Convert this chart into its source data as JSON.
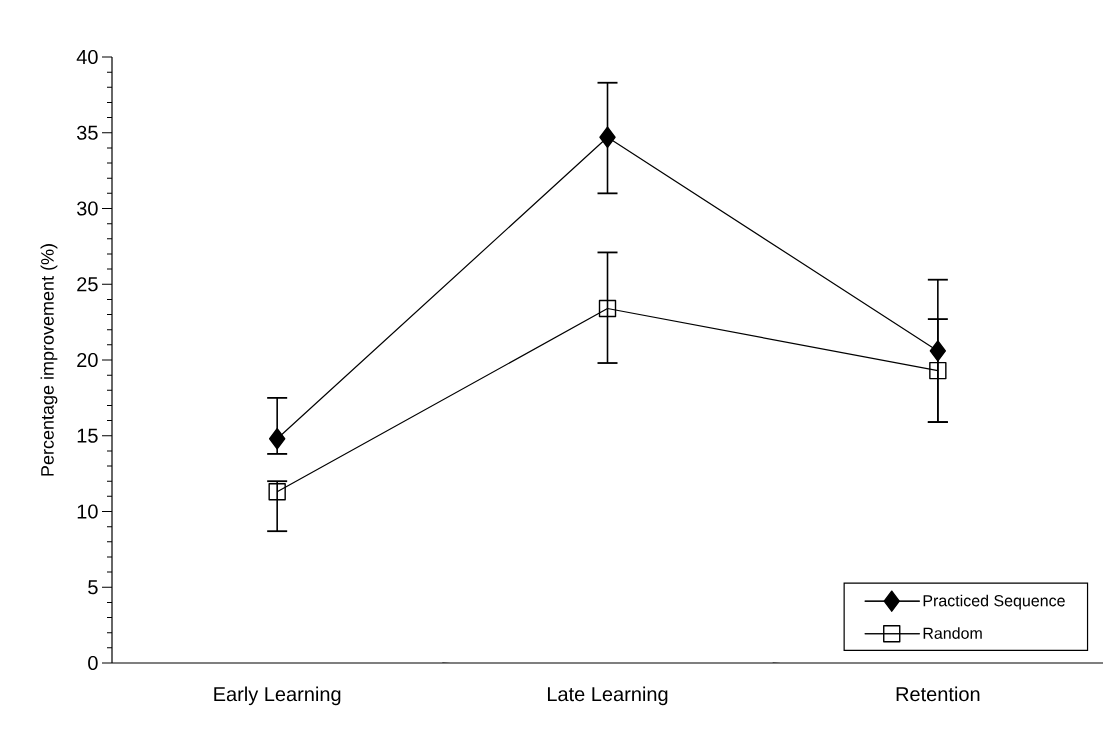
{
  "chart_data": {
    "type": "line",
    "ylabel": "Percentage improvement (%)",
    "categories": [
      "Early Learning",
      "Late Learning",
      "Retention"
    ],
    "series": [
      {
        "name": "Practiced Sequence",
        "color": "#000000",
        "marker": "diamond",
        "values": [
          14.8,
          34.7,
          20.6
        ],
        "errors": [
          [
            13.8,
            17.5
          ],
          [
            31.0,
            38.3
          ],
          [
            15.9,
            25.3
          ]
        ]
      },
      {
        "name": "Random",
        "color": "#000000",
        "marker": "square",
        "values": [
          11.3,
          23.4,
          19.3
        ],
        "errors": [
          [
            8.7,
            12.0
          ],
          [
            19.8,
            27.1
          ],
          [
            15.9,
            22.7
          ]
        ]
      }
    ],
    "ylim": [
      0,
      40
    ],
    "yticks": [
      0,
      5,
      10,
      15,
      20,
      25,
      30,
      35,
      40
    ],
    "grid": false,
    "legend": "bottom right",
    "line_style": "solid"
  }
}
